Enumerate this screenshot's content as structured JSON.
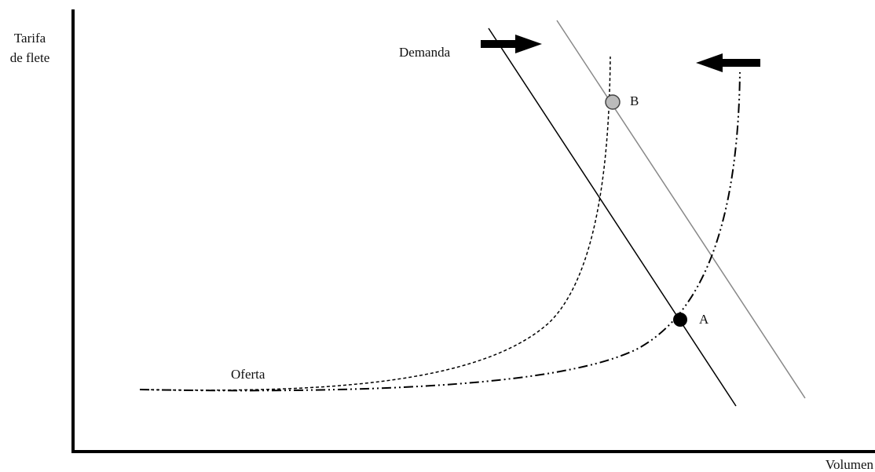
{
  "y_axis_label": [
    "Tarifa",
    "de flete"
  ],
  "x_axis_label": "Volumen",
  "demand_label": "Demanda",
  "supply_label": "Oferta",
  "points": [
    {
      "label": "A"
    },
    {
      "label": "B"
    }
  ]
}
